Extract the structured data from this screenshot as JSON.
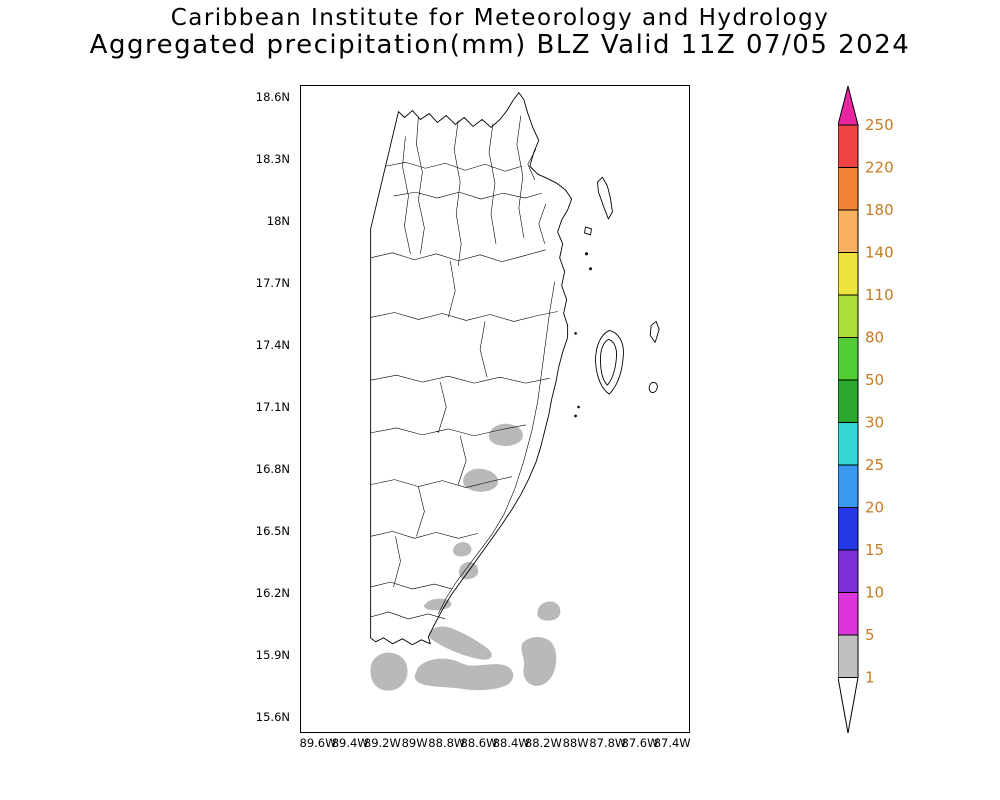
{
  "title": {
    "line1": "Caribbean Institute for Meteorology and Hydrology",
    "line2": "Aggregated precipitation(mm) BLZ Valid 11Z 07/05 2024"
  },
  "map": {
    "region_code": "BLZ",
    "lat_ticks": [
      "18.6N",
      "18.3N",
      "18N",
      "17.7N",
      "17.4N",
      "17.1N",
      "16.8N",
      "16.5N",
      "16.2N",
      "15.9N",
      "15.6N"
    ],
    "lon_ticks": [
      "89.6W",
      "89.4W",
      "89.2W",
      "89W",
      "88.8W",
      "88.6W",
      "88.4W",
      "88.2W",
      "88W",
      "87.8W",
      "87.6W",
      "87.4W"
    ]
  },
  "colorbar": {
    "labels": [
      "250",
      "220",
      "180",
      "140",
      "110",
      "80",
      "50",
      "30",
      "25",
      "20",
      "15",
      "10",
      "5",
      "1"
    ],
    "arrow_top_color": "#e8259e",
    "arrow_bottom_color": "#ffffff",
    "segment_colors": [
      "#f04343",
      "#f28435",
      "#f7b161",
      "#efe33e",
      "#aade3a",
      "#52cc34",
      "#2aa82e",
      "#35d6d6",
      "#3a98ef",
      "#2438e8",
      "#7c2fd6",
      "#dc35dc",
      "#bfbfbf"
    ],
    "label_color": "#c77b23"
  },
  "colors": {
    "precip-shade": "#b9b9b9",
    "boundary": "#000000",
    "axis-text": "#000000"
  },
  "chart_data": {
    "type": "map",
    "title": "Aggregated precipitation(mm) BLZ Valid 11Z 07/05 2024",
    "units": "mm",
    "lat_range": [
      "15.6N",
      "18.6N"
    ],
    "lon_range": [
      "89.6W",
      "87.4W"
    ],
    "legend_thresholds": [
      1,
      5,
      10,
      15,
      20,
      25,
      30,
      50,
      80,
      110,
      140,
      180,
      220,
      250
    ],
    "shaded_areas": [
      {
        "value_range_mm": "1-5",
        "approx_location": "~16.95N 88.6W, small patch in central Belize"
      },
      {
        "value_range_mm": "1-5",
        "approx_location": "~16.8N 88.7W, small patch"
      },
      {
        "value_range_mm": "1-5",
        "approx_location": "~16.35N 88.75W, two tiny patches"
      },
      {
        "value_range_mm": "1-5",
        "approx_location": "~16.15N 88.95W, thin streak"
      },
      {
        "value_range_mm": "1-5",
        "approx_location": "15.7N-16.0N between 89.3W and 88.2W, cluster of blobs along/off the southern coast"
      }
    ]
  }
}
